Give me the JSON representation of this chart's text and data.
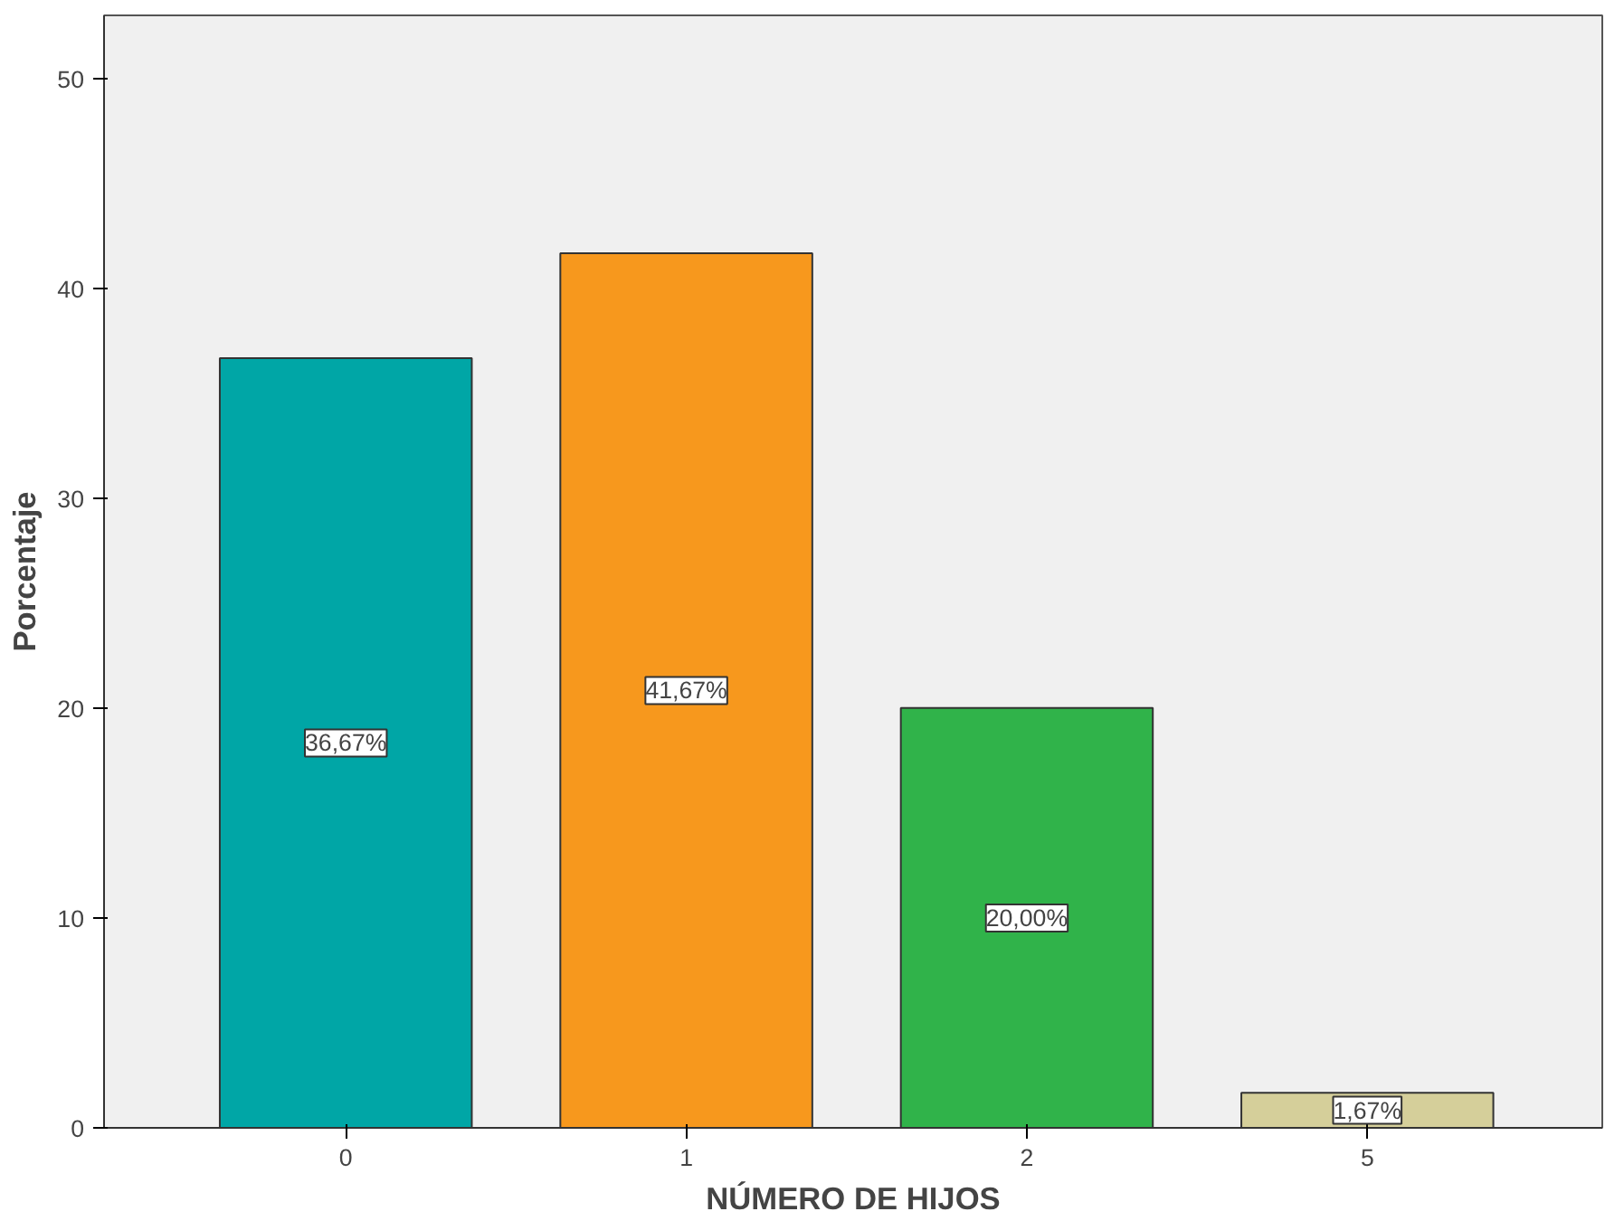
{
  "chart_data": {
    "type": "bar",
    "xlabel": "NÚMERO DE HIJOS",
    "ylabel": "Porcentaje",
    "categories": [
      "0",
      "1",
      "2",
      "5"
    ],
    "values": [
      36.67,
      41.67,
      20.0,
      1.67
    ],
    "colors": [
      "#00a6a6",
      "#f7981d",
      "#30b34a",
      "#d5cf9a"
    ],
    "value_labels": [
      "36,67%",
      "41,67%",
      "20,00%",
      "1,67%"
    ],
    "ylim": [
      0,
      53
    ],
    "yticks": [
      0,
      10,
      20,
      30,
      40,
      50
    ],
    "grid": false
  }
}
